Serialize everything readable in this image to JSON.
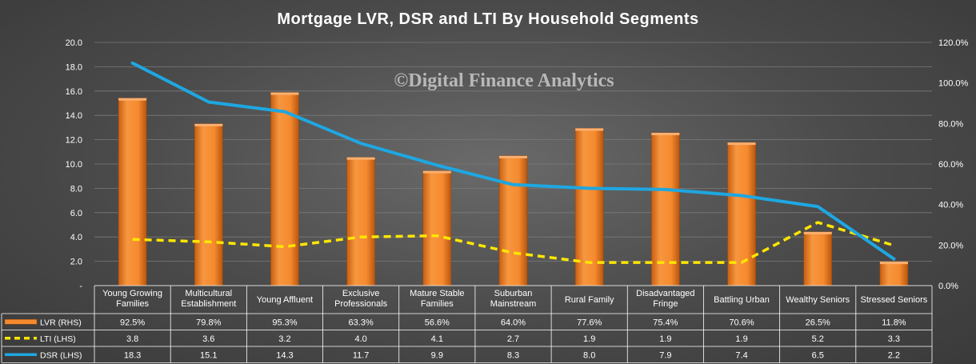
{
  "chart_data": {
    "type": "bar",
    "title": "Mortgage  LVR, DSR and LTI By Household  Segments",
    "watermark": "©Digital Finance Analytics",
    "categories": [
      [
        "Young Growing",
        "Families"
      ],
      [
        "Multicultural",
        "Establishment"
      ],
      [
        "Young Affluent"
      ],
      [
        "Exclusive",
        "Professionals"
      ],
      [
        "Mature Stable",
        "Families"
      ],
      [
        "Suburban",
        "Mainstream"
      ],
      [
        "Rural Family"
      ],
      [
        "Disadvantaged",
        "Fringe"
      ],
      [
        "Battling Urban"
      ],
      [
        "Wealthy Seniors"
      ],
      [
        "Stressed Seniors"
      ]
    ],
    "y_left": {
      "min": 0,
      "max": 20,
      "step": 2,
      "ticks": [
        "-",
        "2.0",
        "4.0",
        "6.0",
        "8.0",
        "10.0",
        "12.0",
        "14.0",
        "16.0",
        "18.0",
        "20.0"
      ]
    },
    "y_right": {
      "min": 0,
      "max": 120,
      "step": 20,
      "ticks": [
        "0.0%",
        "20.0%",
        "40.0%",
        "60.0%",
        "80.0%",
        "100.0%",
        "120.0%"
      ]
    },
    "series": [
      {
        "name": "LVR (RHS)",
        "kind": "bar",
        "axis": "right",
        "color": "#f58a2e",
        "values": [
          92.5,
          79.8,
          95.3,
          63.3,
          56.6,
          64.0,
          77.6,
          75.4,
          70.6,
          26.5,
          11.8
        ],
        "labels": [
          "92.5%",
          "79.8%",
          "95.3%",
          "63.3%",
          "56.6%",
          "64.0%",
          "77.6%",
          "75.4%",
          "70.6%",
          "26.5%",
          "11.8%"
        ]
      },
      {
        "name": "LTI (LHS)",
        "kind": "dashed-line",
        "axis": "left",
        "color": "#ffe600",
        "values": [
          3.8,
          3.6,
          3.2,
          4.0,
          4.1,
          2.7,
          1.9,
          1.9,
          1.9,
          5.2,
          3.3
        ],
        "labels": [
          "3.8",
          "3.6",
          "3.2",
          "4.0",
          "4.1",
          "2.7",
          "1.9",
          "1.9",
          "1.9",
          "5.2",
          "3.3"
        ]
      },
      {
        "name": "DSR (LHS)",
        "kind": "line",
        "axis": "left",
        "color": "#1ea7e1",
        "values": [
          18.3,
          15.1,
          14.3,
          11.7,
          9.9,
          8.3,
          8.0,
          7.9,
          7.4,
          6.5,
          2.2
        ],
        "labels": [
          "18.3",
          "15.1",
          "14.3",
          "11.7",
          "9.9",
          "8.3",
          "8.0",
          "7.9",
          "7.4",
          "6.5",
          "2.2"
        ]
      }
    ],
    "grid": true,
    "legend": "data-table"
  }
}
